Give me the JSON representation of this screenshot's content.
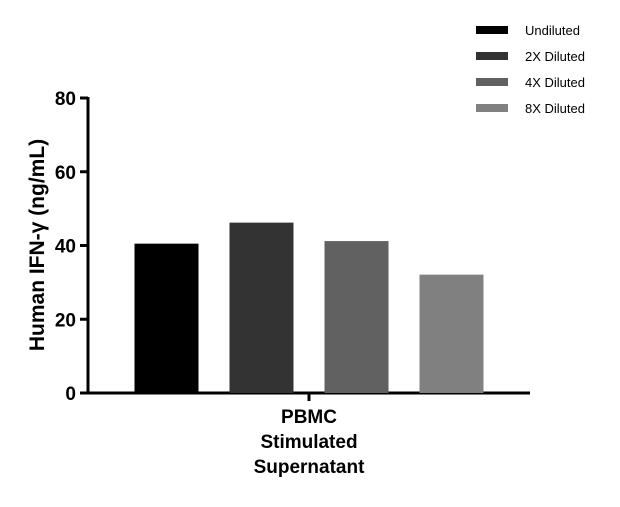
{
  "chart_data": {
    "type": "bar",
    "title": "",
    "ylabel": "Human IFN-γ (ng/mL)",
    "xlabel": "",
    "categories": [
      "PBMC Stimulated Supernatant"
    ],
    "category_lines": [
      "PBMC",
      "Stimulated",
      "Supernatant"
    ],
    "ylim": [
      0,
      80
    ],
    "yticks": [
      0,
      20,
      40,
      60,
      80
    ],
    "grid": false,
    "legend_position": "top-right",
    "series": [
      {
        "name": "Undiluted",
        "values": [
          40.5
        ],
        "color": "#000000"
      },
      {
        "name": "2X Diluted",
        "values": [
          46.2
        ],
        "color": "#333333"
      },
      {
        "name": "4X Diluted",
        "values": [
          41.2
        ],
        "color": "#616161"
      },
      {
        "name": "8X Diluted",
        "values": [
          32.1
        ],
        "color": "#808080"
      }
    ]
  }
}
